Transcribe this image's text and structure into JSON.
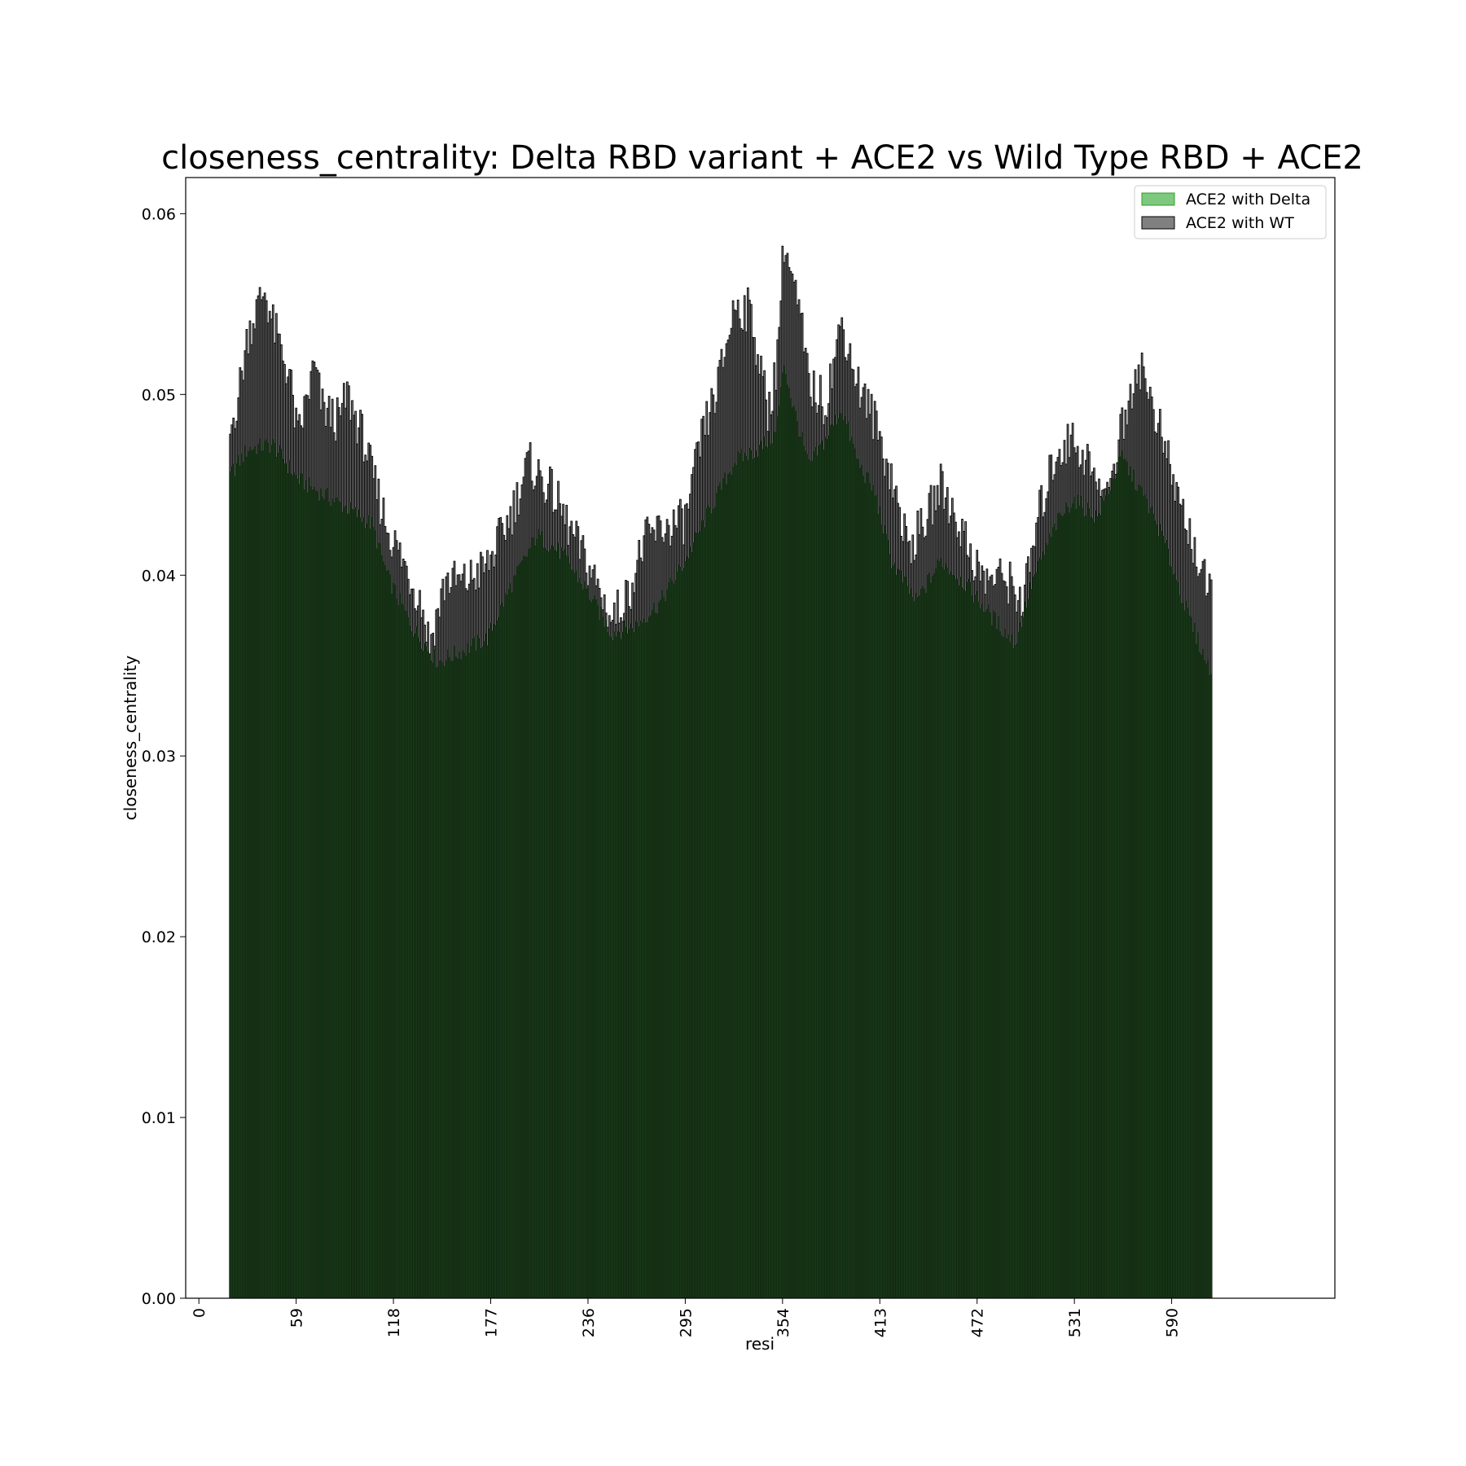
{
  "chart_data": {
    "type": "bar",
    "title": "closeness_centrality: Delta RBD variant + ACE2 vs Wild Type RBD + ACE2",
    "xlabel": "resi",
    "ylabel": "closeness_centrality",
    "xlim": [
      -8,
      689
    ],
    "ylim": [
      0,
      0.062
    ],
    "x_ticks": [
      0,
      59,
      118,
      177,
      236,
      295,
      354,
      413,
      472,
      531,
      590
    ],
    "y_ticks": [
      "0.00",
      "0.01",
      "0.02",
      "0.03",
      "0.04",
      "0.05",
      "0.06"
    ],
    "x_range": [
      19,
      614
    ],
    "legend_position": "upper right",
    "grid": false,
    "series": [
      {
        "name": "ACE2 with Delta",
        "color": "#2ca02c",
        "fill_color": "#7fc87f",
        "profile_x": [
          19,
          30,
          45,
          60,
          75,
          90,
          105,
          115,
          130,
          145,
          160,
          175,
          190,
          205,
          220,
          235,
          250,
          265,
          280,
          295,
          310,
          325,
          340,
          350,
          355,
          360,
          370,
          380,
          390,
          400,
          410,
          420,
          435,
          450,
          465,
          480,
          495,
          505,
          520,
          530,
          545,
          560,
          575,
          585,
          600,
          614
        ],
        "profile_y": [
          0.0455,
          0.047,
          0.0472,
          0.0453,
          0.0445,
          0.0437,
          0.0428,
          0.0398,
          0.037,
          0.0352,
          0.0358,
          0.0365,
          0.0395,
          0.0422,
          0.0412,
          0.0392,
          0.0368,
          0.0372,
          0.0385,
          0.0408,
          0.0436,
          0.0463,
          0.047,
          0.0478,
          0.0517,
          0.0495,
          0.046,
          0.0475,
          0.0492,
          0.0462,
          0.0445,
          0.0408,
          0.0385,
          0.0408,
          0.0395,
          0.0378,
          0.0362,
          0.0395,
          0.0428,
          0.0442,
          0.0432,
          0.0465,
          0.044,
          0.042,
          0.0378,
          0.0345
        ]
      },
      {
        "name": "ACE2 with WT",
        "color": "#000000",
        "fill_color": "#808080",
        "profile_x": [
          19,
          25,
          30,
          40,
          45,
          55,
          60,
          70,
          75,
          85,
          90,
          100,
          105,
          115,
          125,
          135,
          140,
          150,
          160,
          175,
          190,
          200,
          215,
          225,
          240,
          250,
          260,
          270,
          280,
          295,
          305,
          315,
          325,
          335,
          345,
          350,
          355,
          365,
          370,
          380,
          390,
          400,
          410,
          420,
          430,
          440,
          450,
          460,
          475,
          490,
          500,
          510,
          520,
          530,
          540,
          550,
          560,
          570,
          580,
          590,
          600,
          614
        ],
        "profile_y": [
          0.0478,
          0.0505,
          0.0535,
          0.0558,
          0.0538,
          0.051,
          0.0475,
          0.0515,
          0.0492,
          0.0485,
          0.05,
          0.0475,
          0.0455,
          0.0425,
          0.0405,
          0.0385,
          0.0362,
          0.0398,
          0.0395,
          0.0405,
          0.0435,
          0.0462,
          0.0445,
          0.0425,
          0.0398,
          0.0375,
          0.0388,
          0.0418,
          0.0425,
          0.043,
          0.0475,
          0.0505,
          0.055,
          0.0545,
          0.049,
          0.0512,
          0.0585,
          0.054,
          0.0505,
          0.0495,
          0.054,
          0.0505,
          0.0485,
          0.0455,
          0.0415,
          0.0428,
          0.045,
          0.043,
          0.0398,
          0.0398,
          0.0385,
          0.0435,
          0.0468,
          0.0475,
          0.0462,
          0.0435,
          0.0482,
          0.0518,
          0.049,
          0.0455,
          0.0425,
          0.0385
        ]
      }
    ]
  }
}
